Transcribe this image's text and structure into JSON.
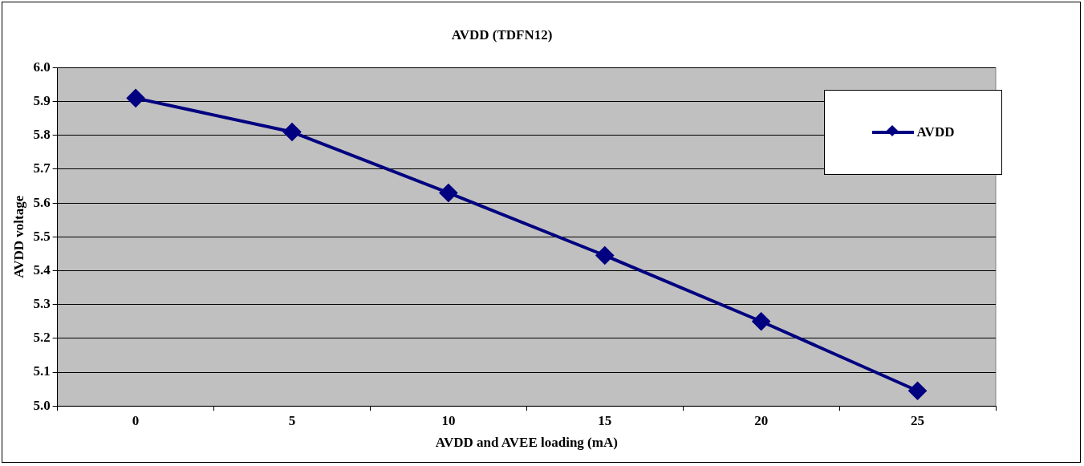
{
  "chart_data": {
    "type": "line",
    "title": "AVDD (TDFN12)",
    "xlabel": "AVDD and AVEE loading (mA)",
    "ylabel": "AVDD voltage",
    "categories": [
      "0",
      "5",
      "10",
      "15",
      "20",
      "25"
    ],
    "series": [
      {
        "name": "AVDD",
        "color": "#000080",
        "values": [
          5.91,
          5.81,
          5.63,
          5.445,
          5.25,
          5.045
        ]
      }
    ],
    "ylim": [
      5.0,
      6.0
    ],
    "yticks": [
      {
        "value": 5.0,
        "label": "5.0"
      },
      {
        "value": 5.1,
        "label": "5.1"
      },
      {
        "value": 5.2,
        "label": "5.2"
      },
      {
        "value": 5.3,
        "label": "5.3"
      },
      {
        "value": 5.4,
        "label": "5.4"
      },
      {
        "value": 5.5,
        "label": "5.5"
      },
      {
        "value": 5.6,
        "label": "5.6"
      },
      {
        "value": 5.7,
        "label": "5.7"
      },
      {
        "value": 5.8,
        "label": "5.8"
      },
      {
        "value": 5.9,
        "label": "5.9"
      },
      {
        "value": 6.0,
        "label": "6.0"
      }
    ],
    "grid": "y",
    "legend": "top right",
    "marker": "diamond",
    "line_style": "solid"
  }
}
